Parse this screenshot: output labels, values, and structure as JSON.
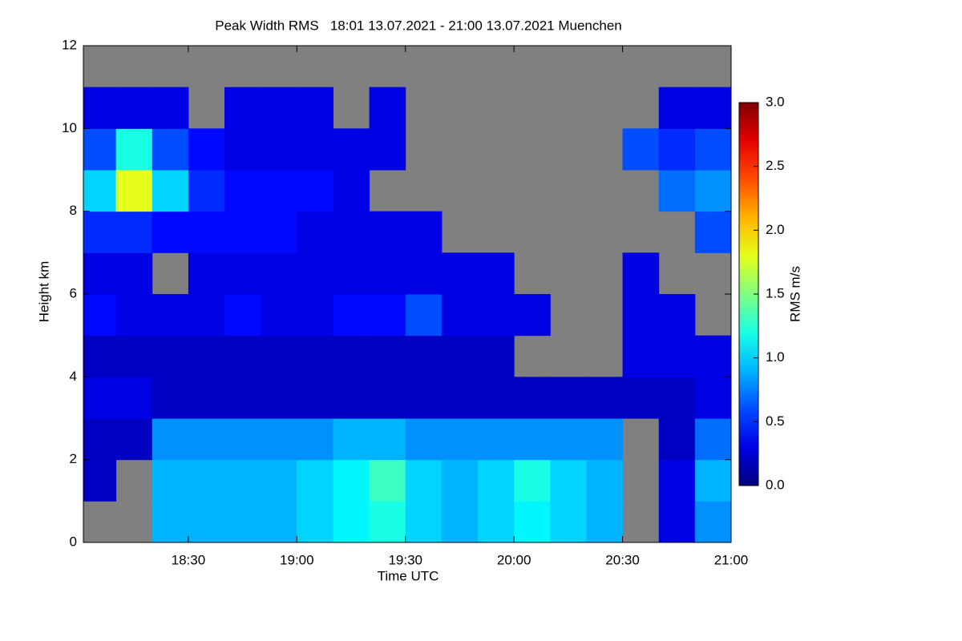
{
  "chart_data": {
    "type": "heatmap",
    "title": "Peak Width RMS   18:01 13.07.2021 - 21:00 13.07.2021 Muenchen",
    "x_label": "Time UTC",
    "y_label": "Height km",
    "colorbar_label": "RMS m/s",
    "x": [
      18.0167,
      18.1667,
      18.3333,
      18.5,
      18.6667,
      18.8333,
      19,
      19.1667,
      19.3333,
      19.5,
      19.6667,
      19.8333,
      20,
      20.1667,
      20.3333,
      20.5,
      20.6667,
      20.8333,
      21
    ],
    "y": [
      0,
      1,
      2,
      3,
      4,
      5,
      6,
      7,
      8,
      9,
      10,
      11,
      12
    ],
    "values": [
      [
        null,
        null,
        0.9,
        0.9,
        0.9,
        0.9,
        1.0,
        1.1,
        1.2,
        1.0,
        0.9,
        1.0,
        1.1,
        1.0,
        0.9,
        null,
        0.3,
        0.8
      ],
      [
        0.2,
        null,
        0.9,
        0.9,
        0.9,
        0.9,
        1.0,
        1.1,
        1.3,
        1.0,
        0.9,
        1.0,
        1.2,
        1.0,
        0.9,
        null,
        0.3,
        0.9
      ],
      [
        0.2,
        0.2,
        0.8,
        0.8,
        0.8,
        0.8,
        0.8,
        0.9,
        0.9,
        0.8,
        0.8,
        0.8,
        0.8,
        0.8,
        0.8,
        null,
        0.2,
        0.7
      ],
      [
        0.3,
        0.3,
        0.2,
        0.2,
        0.2,
        0.2,
        0.2,
        0.2,
        0.2,
        0.2,
        0.2,
        0.2,
        0.2,
        0.2,
        0.2,
        0.2,
        0.2,
        0.3
      ],
      [
        0.2,
        0.2,
        0.2,
        0.2,
        0.2,
        0.2,
        0.2,
        0.2,
        0.2,
        0.2,
        0.2,
        0.2,
        null,
        null,
        null,
        0.3,
        0.3,
        0.3
      ],
      [
        0.4,
        0.3,
        0.3,
        0.3,
        0.4,
        0.3,
        0.3,
        0.4,
        0.4,
        0.6,
        0.3,
        0.3,
        0.3,
        null,
        null,
        0.3,
        0.3,
        null
      ],
      [
        0.3,
        0.3,
        null,
        0.3,
        0.3,
        0.3,
        0.3,
        0.3,
        0.3,
        0.3,
        0.3,
        0.3,
        null,
        null,
        null,
        0.3,
        null,
        null
      ],
      [
        0.5,
        0.5,
        0.4,
        0.4,
        0.4,
        0.4,
        0.3,
        0.3,
        0.3,
        0.3,
        null,
        null,
        null,
        null,
        null,
        null,
        null,
        0.6
      ],
      [
        1.0,
        1.8,
        1.0,
        0.5,
        0.4,
        0.4,
        0.4,
        0.3,
        null,
        null,
        null,
        null,
        null,
        null,
        null,
        null,
        0.7,
        0.8
      ],
      [
        0.6,
        1.2,
        0.6,
        0.4,
        0.3,
        0.3,
        0.3,
        0.3,
        0.3,
        null,
        null,
        null,
        null,
        null,
        null,
        0.6,
        0.5,
        0.6
      ],
      [
        0.3,
        0.3,
        0.3,
        null,
        0.3,
        0.3,
        0.3,
        null,
        0.3,
        null,
        null,
        null,
        null,
        null,
        null,
        null,
        0.3,
        0.3
      ],
      [
        null,
        null,
        null,
        null,
        null,
        null,
        null,
        null,
        null,
        null,
        null,
        null,
        null,
        null,
        null,
        null,
        null,
        null
      ]
    ],
    "xlim": [
      18.0167,
      21.0
    ],
    "xticks": [
      {
        "value": 18.5,
        "label": "18:30"
      },
      {
        "value": 19,
        "label": "19:00"
      },
      {
        "value": 19.5,
        "label": "19:30"
      },
      {
        "value": 20,
        "label": "20:00"
      },
      {
        "value": 20.5,
        "label": "20:30"
      },
      {
        "value": 21,
        "label": "21:00"
      }
    ],
    "ylim": [
      0,
      12
    ],
    "yticks": [
      0,
      2,
      4,
      6,
      8,
      10,
      12
    ],
    "zlim": [
      0,
      3
    ],
    "zticks": [
      {
        "value": 0,
        "label": "0.0"
      },
      {
        "value": 0.5,
        "label": "0.5"
      },
      {
        "value": 1,
        "label": "1.0"
      },
      {
        "value": 1.5,
        "label": "1.5"
      },
      {
        "value": 2,
        "label": "2.0"
      },
      {
        "value": 2.5,
        "label": "2.5"
      },
      {
        "value": 3,
        "label": "3.0"
      }
    ],
    "colormap": "jet",
    "missing_color": "#808080"
  }
}
